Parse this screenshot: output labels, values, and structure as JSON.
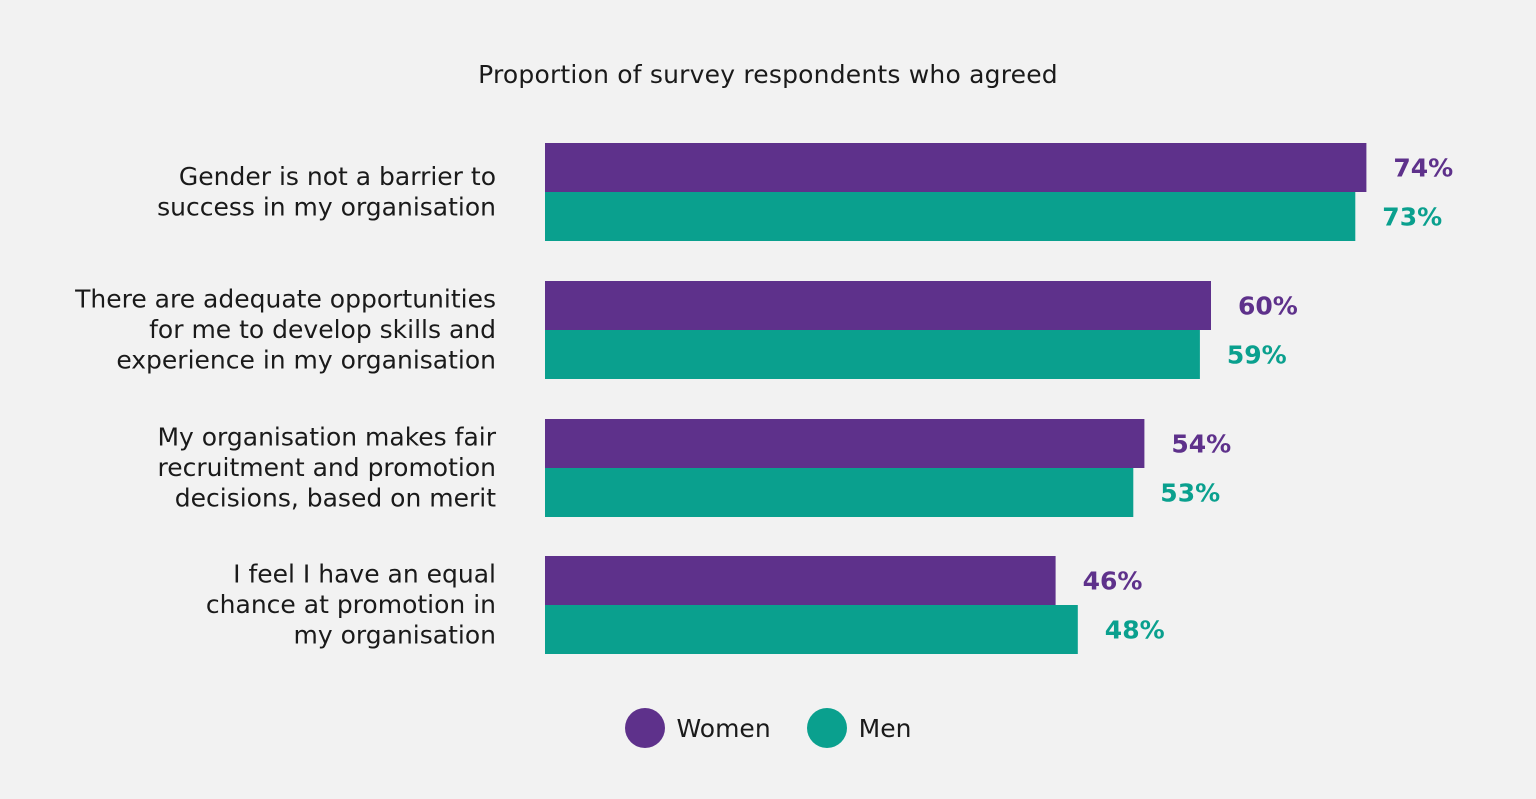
{
  "colors": {
    "women": "#5e318b",
    "men": "#0aa08e"
  },
  "chart_data": {
    "type": "bar",
    "orientation": "horizontal",
    "title": "Proportion of survey respondents who agreed",
    "categories": [
      [
        "Gender is not a barrier to",
        "success in my organisation"
      ],
      [
        "There are adequate opportunities",
        "for me to develop skills and",
        "experience in my organisation"
      ],
      [
        "My organisation makes fair",
        "recruitment and promotion",
        "decisions, based on merit"
      ],
      [
        "I feel I have an equal",
        "chance at promotion in",
        "my organisation"
      ]
    ],
    "series": [
      {
        "name": "Women",
        "values": [
          74,
          60,
          54,
          46
        ],
        "labels": [
          "74%",
          "60%",
          "54%",
          "46%"
        ]
      },
      {
        "name": "Men",
        "values": [
          73,
          59,
          53,
          48
        ],
        "labels": [
          "73%",
          "59%",
          "53%",
          "48%"
        ]
      }
    ],
    "xlim": [
      0,
      100
    ],
    "unit": "%",
    "grid": false,
    "legend_position": "bottom-center"
  }
}
